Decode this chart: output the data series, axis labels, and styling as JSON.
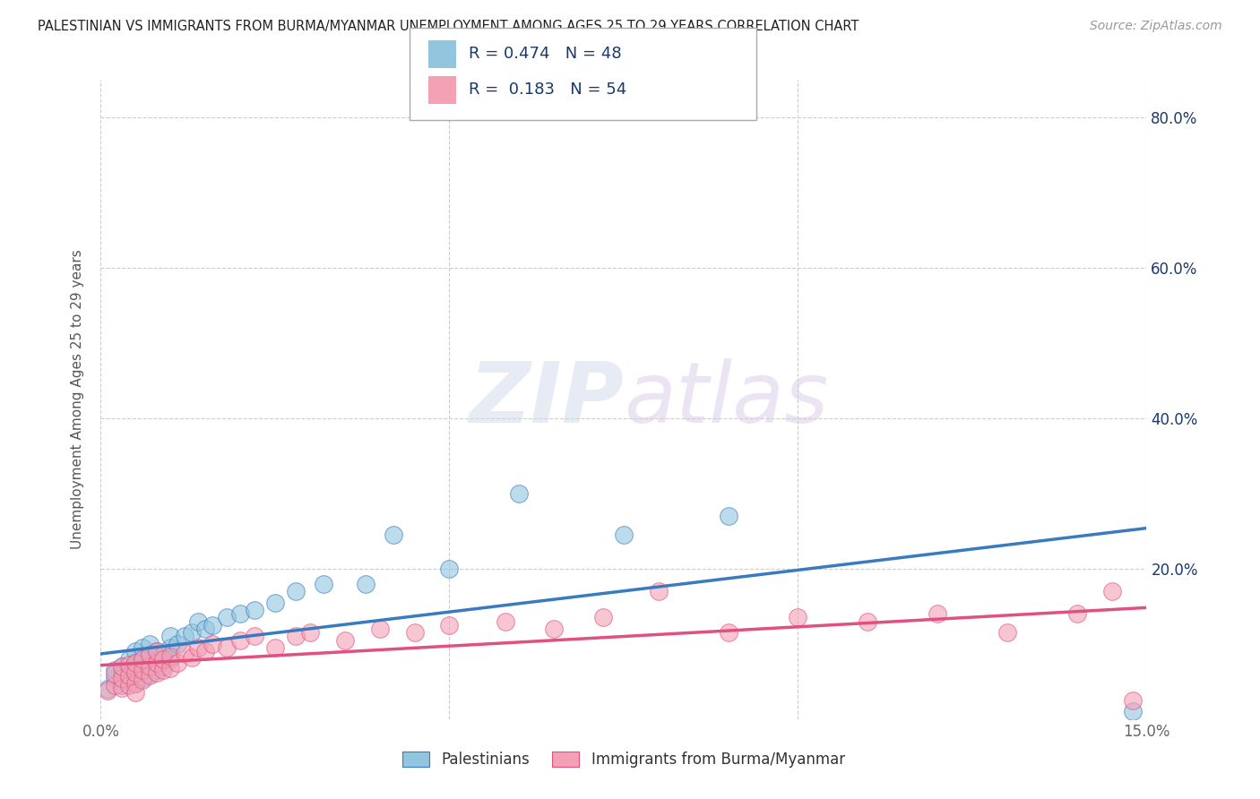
{
  "title": "PALESTINIAN VS IMMIGRANTS FROM BURMA/MYANMAR UNEMPLOYMENT AMONG AGES 25 TO 29 YEARS CORRELATION CHART",
  "source": "Source: ZipAtlas.com",
  "ylabel": "Unemployment Among Ages 25 to 29 years",
  "xlim": [
    0.0,
    0.15
  ],
  "ylim": [
    0.0,
    0.85
  ],
  "x_ticks": [
    0.0,
    0.05,
    0.1,
    0.15
  ],
  "x_tick_labels": [
    "0.0%",
    "",
    "",
    "15.0%"
  ],
  "y_ticks": [
    0.0,
    0.2,
    0.4,
    0.6,
    0.8
  ],
  "y_tick_labels": [
    "",
    "20.0%",
    "40.0%",
    "60.0%",
    "80.0%"
  ],
  "grid_color": "#cccccc",
  "background_color": "#ffffff",
  "watermark_zip": "ZIP",
  "watermark_atlas": "atlas",
  "blue_color": "#92c5de",
  "blue_line_color": "#3a7bbf",
  "pink_color": "#f4a0b5",
  "pink_line_color": "#e05080",
  "blue_R": 0.474,
  "blue_N": 48,
  "pink_R": 0.183,
  "pink_N": 54,
  "legend_label_blue": "Palestinians",
  "legend_label_pink": "Immigrants from Burma/Myanmar",
  "title_color": "#222222",
  "legend_text_color": "#1a3a6b",
  "blue_scatter_x": [
    0.001,
    0.002,
    0.002,
    0.003,
    0.003,
    0.003,
    0.004,
    0.004,
    0.004,
    0.005,
    0.005,
    0.005,
    0.005,
    0.006,
    0.006,
    0.006,
    0.006,
    0.007,
    0.007,
    0.007,
    0.007,
    0.008,
    0.008,
    0.008,
    0.009,
    0.009,
    0.01,
    0.01,
    0.01,
    0.011,
    0.012,
    0.013,
    0.014,
    0.015,
    0.016,
    0.018,
    0.02,
    0.022,
    0.025,
    0.028,
    0.032,
    0.038,
    0.042,
    0.05,
    0.06,
    0.075,
    0.09,
    0.148
  ],
  "blue_scatter_y": [
    0.04,
    0.055,
    0.065,
    0.045,
    0.06,
    0.07,
    0.05,
    0.065,
    0.08,
    0.048,
    0.062,
    0.075,
    0.09,
    0.055,
    0.068,
    0.08,
    0.095,
    0.06,
    0.072,
    0.085,
    0.1,
    0.065,
    0.078,
    0.09,
    0.07,
    0.085,
    0.08,
    0.095,
    0.11,
    0.1,
    0.11,
    0.115,
    0.13,
    0.12,
    0.125,
    0.135,
    0.14,
    0.145,
    0.155,
    0.17,
    0.18,
    0.18,
    0.245,
    0.2,
    0.3,
    0.245,
    0.27,
    0.01
  ],
  "pink_scatter_x": [
    0.001,
    0.002,
    0.002,
    0.003,
    0.003,
    0.003,
    0.004,
    0.004,
    0.004,
    0.005,
    0.005,
    0.005,
    0.005,
    0.006,
    0.006,
    0.006,
    0.007,
    0.007,
    0.007,
    0.008,
    0.008,
    0.008,
    0.009,
    0.009,
    0.01,
    0.01,
    0.011,
    0.012,
    0.013,
    0.014,
    0.015,
    0.016,
    0.018,
    0.02,
    0.022,
    0.025,
    0.028,
    0.03,
    0.035,
    0.04,
    0.045,
    0.05,
    0.058,
    0.065,
    0.072,
    0.08,
    0.09,
    0.1,
    0.11,
    0.12,
    0.13,
    0.14,
    0.145,
    0.148
  ],
  "pink_scatter_y": [
    0.038,
    0.045,
    0.06,
    0.042,
    0.055,
    0.07,
    0.045,
    0.058,
    0.072,
    0.048,
    0.062,
    0.075,
    0.035,
    0.052,
    0.065,
    0.08,
    0.058,
    0.07,
    0.085,
    0.062,
    0.075,
    0.09,
    0.065,
    0.08,
    0.068,
    0.083,
    0.075,
    0.088,
    0.082,
    0.095,
    0.09,
    0.1,
    0.095,
    0.105,
    0.11,
    0.095,
    0.11,
    0.115,
    0.105,
    0.12,
    0.115,
    0.125,
    0.13,
    0.12,
    0.135,
    0.17,
    0.115,
    0.135,
    0.13,
    0.14,
    0.115,
    0.14,
    0.17,
    0.025
  ]
}
